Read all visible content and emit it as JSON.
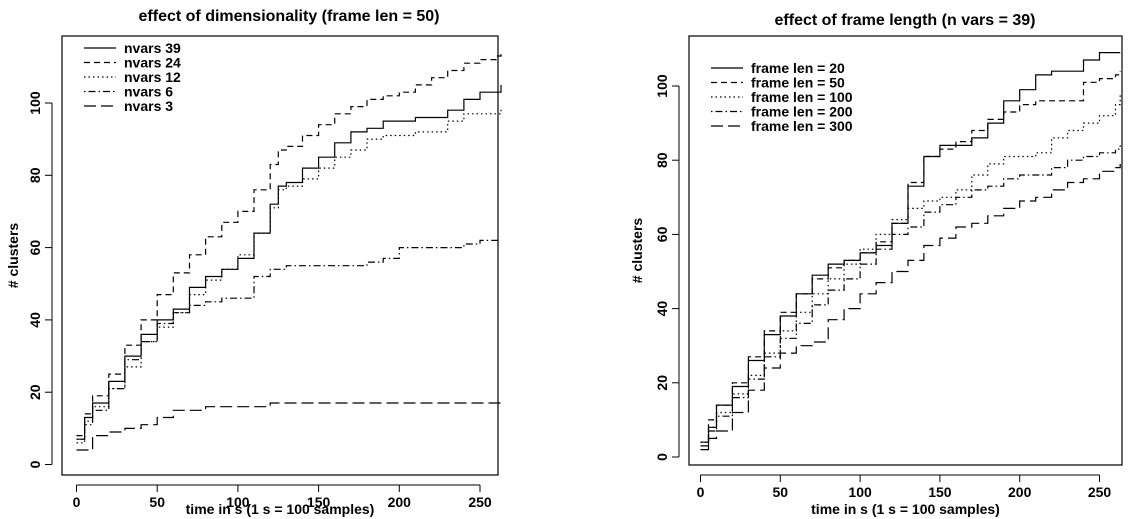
{
  "chart_data": [
    {
      "type": "line",
      "title": "effect of dimensionality (frame len = 50)",
      "xlabel": "time in s (1 s = 100 samples)",
      "ylabel": "# clusters",
      "xlim": [
        0,
        265
      ],
      "ylim": [
        0,
        115
      ],
      "xticks": [
        "0",
        "50",
        "100",
        "150",
        "200",
        "250"
      ],
      "yticks": [
        "0",
        "20",
        "40",
        "60",
        "80",
        "100"
      ],
      "legend": "top-left",
      "grid": false,
      "series": [
        {
          "name": "nvars 39",
          "dash": "solid",
          "x": [
            0,
            5,
            10,
            20,
            30,
            40,
            50,
            60,
            70,
            80,
            90,
            100,
            110,
            120,
            125,
            130,
            140,
            150,
            160,
            170,
            180,
            190,
            200,
            210,
            220,
            230,
            240,
            250,
            260,
            263
          ],
          "y": [
            7,
            13,
            17,
            23,
            30,
            36,
            40,
            43,
            49,
            52,
            54,
            57,
            64,
            72,
            77,
            78,
            82,
            85,
            89,
            92,
            93,
            95,
            95,
            96,
            96,
            98,
            101,
            103,
            103,
            105
          ]
        },
        {
          "name": "nvars 24",
          "dash": "dashed",
          "x": [
            0,
            5,
            10,
            20,
            30,
            40,
            50,
            60,
            70,
            80,
            90,
            100,
            110,
            120,
            125,
            130,
            140,
            150,
            160,
            170,
            180,
            190,
            200,
            210,
            220,
            230,
            240,
            250,
            260,
            263
          ],
          "y": [
            8,
            14,
            19,
            25,
            33,
            40,
            47,
            53,
            58,
            63,
            67,
            70,
            76,
            83,
            87,
            88,
            91,
            94,
            97,
            99,
            101,
            102,
            103,
            105,
            107,
            109,
            111,
            112,
            113,
            114
          ]
        },
        {
          "name": "nvars 12",
          "dash": "dotted",
          "x": [
            0,
            5,
            10,
            20,
            30,
            40,
            50,
            60,
            70,
            80,
            90,
            100,
            110,
            120,
            125,
            130,
            140,
            150,
            160,
            170,
            180,
            190,
            200,
            210,
            220,
            230,
            240,
            250,
            260,
            263
          ],
          "y": [
            6,
            11,
            16,
            21,
            27,
            34,
            38,
            42,
            47,
            51,
            54,
            58,
            64,
            71,
            76,
            77,
            79,
            82,
            85,
            87,
            90,
            91,
            91,
            92,
            92,
            95,
            97,
            97,
            97,
            99
          ]
        },
        {
          "name": "nvars 6",
          "dash": "dotdash",
          "x": [
            0,
            5,
            10,
            20,
            30,
            40,
            50,
            60,
            70,
            80,
            90,
            100,
            110,
            120,
            130,
            140,
            150,
            160,
            170,
            180,
            190,
            200,
            210,
            220,
            230,
            240,
            250,
            260,
            263
          ],
          "y": [
            7,
            12,
            15,
            21,
            29,
            34,
            39,
            42,
            44,
            45,
            46,
            46,
            52,
            54,
            55,
            55,
            55,
            55,
            55,
            56,
            57,
            60,
            60,
            60,
            60,
            61,
            62,
            62,
            62
          ]
        },
        {
          "name": "nvars 3",
          "dash": "longdash",
          "x": [
            0,
            5,
            10,
            20,
            30,
            40,
            50,
            60,
            70,
            80,
            90,
            100,
            110,
            120,
            125,
            150,
            200,
            263
          ],
          "y": [
            4,
            4,
            8,
            9,
            10,
            11,
            13,
            15,
            15,
            16,
            16,
            16,
            16,
            17,
            17,
            17,
            17,
            17
          ]
        }
      ]
    },
    {
      "type": "line",
      "title": "effect of frame length (n vars = 39)",
      "xlabel": "time in s (1 s = 100 samples)",
      "ylabel": "# clusters",
      "xlim": [
        0,
        265
      ],
      "ylim": [
        0,
        112
      ],
      "xticks": [
        "0",
        "50",
        "100",
        "150",
        "200",
        "250"
      ],
      "yticks": [
        "0",
        "20",
        "40",
        "60",
        "80",
        "100"
      ],
      "legend": "top-left",
      "grid": false,
      "series": [
        {
          "name": "frame len = 20",
          "dash": "solid",
          "x": [
            0,
            5,
            10,
            20,
            30,
            40,
            50,
            60,
            70,
            80,
            90,
            100,
            110,
            120,
            130,
            140,
            150,
            160,
            170,
            180,
            190,
            200,
            210,
            220,
            230,
            240,
            250,
            260,
            263
          ],
          "y": [
            3,
            8,
            14,
            19,
            26,
            33,
            38,
            44,
            49,
            52,
            53,
            55,
            57,
            63,
            73,
            81,
            84,
            84,
            86,
            90,
            96,
            99,
            103,
            104,
            104,
            107,
            109,
            109,
            109
          ]
        },
        {
          "name": "frame len = 50",
          "dash": "dashed",
          "x": [
            0,
            5,
            10,
            20,
            30,
            40,
            50,
            60,
            70,
            80,
            90,
            100,
            110,
            120,
            130,
            140,
            150,
            160,
            170,
            180,
            190,
            200,
            210,
            220,
            230,
            240,
            250,
            260,
            263
          ],
          "y": [
            4,
            10,
            14,
            20,
            27,
            34,
            39,
            44,
            48,
            51,
            53,
            55,
            58,
            63,
            74,
            81,
            83,
            85,
            88,
            91,
            93,
            95,
            96,
            96,
            96,
            101,
            102,
            103,
            104
          ]
        },
        {
          "name": "frame len = 100",
          "dash": "dotted",
          "x": [
            0,
            5,
            10,
            20,
            30,
            40,
            50,
            60,
            70,
            80,
            90,
            100,
            110,
            120,
            130,
            140,
            150,
            160,
            170,
            180,
            190,
            200,
            210,
            220,
            230,
            240,
            250,
            260,
            263
          ],
          "y": [
            4,
            8,
            12,
            17,
            22,
            28,
            34,
            39,
            44,
            48,
            52,
            56,
            60,
            64,
            67,
            69,
            70,
            72,
            76,
            79,
            81,
            81,
            82,
            86,
            88,
            90,
            92,
            95,
            98
          ]
        },
        {
          "name": "frame len = 200",
          "dash": "dotdash",
          "x": [
            0,
            5,
            10,
            20,
            30,
            40,
            50,
            60,
            70,
            80,
            90,
            100,
            110,
            120,
            130,
            140,
            150,
            160,
            170,
            180,
            190,
            200,
            210,
            220,
            230,
            240,
            250,
            260,
            263
          ],
          "y": [
            4,
            7,
            11,
            16,
            21,
            27,
            32,
            36,
            41,
            45,
            48,
            52,
            56,
            60,
            62,
            66,
            68,
            70,
            72,
            73,
            75,
            76,
            76,
            78,
            80,
            81,
            82,
            83,
            84
          ]
        },
        {
          "name": "frame len = 300",
          "dash": "longdash",
          "x": [
            0,
            5,
            10,
            20,
            30,
            40,
            50,
            60,
            70,
            80,
            90,
            100,
            110,
            120,
            130,
            140,
            150,
            160,
            170,
            180,
            190,
            200,
            210,
            220,
            230,
            240,
            250,
            260,
            263
          ],
          "y": [
            2,
            5,
            7,
            12,
            18,
            24,
            28,
            30,
            31,
            37,
            40,
            44,
            47,
            50,
            53,
            57,
            59,
            62,
            63,
            65,
            67,
            69,
            70,
            72,
            74,
            75,
            77,
            78,
            79
          ]
        }
      ]
    }
  ]
}
